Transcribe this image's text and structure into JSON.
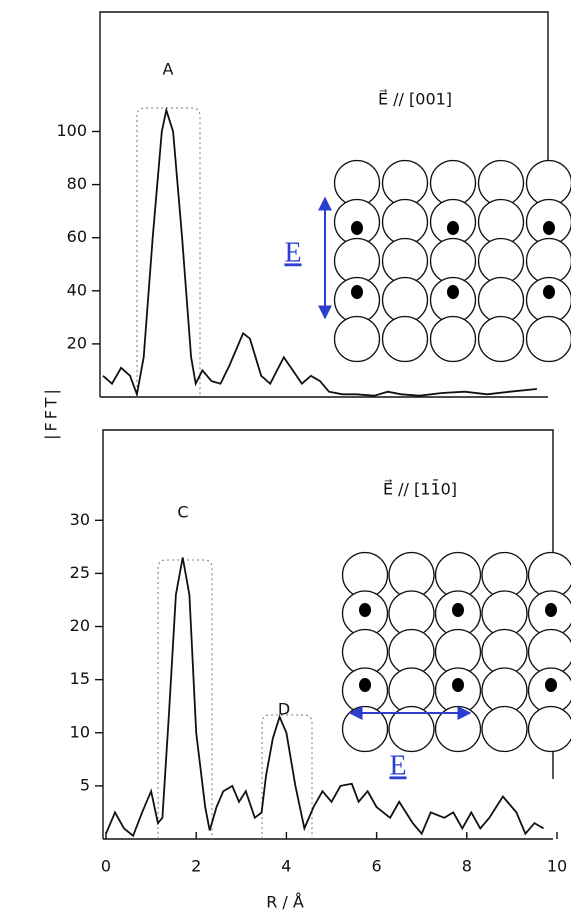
{
  "chart_data": [
    {
      "type": "line",
      "ylabel": "|FFT|",
      "annotations": [
        "A",
        "E⃗ // [001]",
        "E"
      ],
      "xlim": [
        0,
        10
      ],
      "ylim": [
        0,
        145
      ],
      "yticks": [
        20,
        40,
        60,
        80,
        100
      ],
      "color": "#111",
      "x": [
        0,
        0.2,
        0.4,
        0.6,
        0.75,
        0.9,
        1.1,
        1.3,
        1.4,
        1.55,
        1.75,
        1.95,
        2.05,
        2.2,
        2.4,
        2.6,
        2.8,
        3.1,
        3.25,
        3.5,
        3.7,
        4.0,
        4.2,
        4.4,
        4.6,
        4.8,
        5.0,
        5.3,
        5.6,
        6.0,
        6.3,
        6.6,
        7.0,
        7.5,
        8.0,
        8.5,
        9.0,
        9.6
      ],
      "values": [
        8,
        5,
        11,
        8,
        1,
        15,
        60,
        100,
        108,
        100,
        60,
        15,
        5,
        10,
        6,
        5,
        12,
        24,
        22,
        8,
        5,
        15,
        10,
        5,
        8,
        6,
        2,
        1,
        1,
        0.5,
        2,
        1,
        0.5,
        1.5,
        2,
        1,
        2,
        3
      ]
    },
    {
      "type": "line",
      "xlabel": "R / Å",
      "annotations": [
        "C",
        "D",
        "E⃗ // [11̄0]",
        "E"
      ],
      "xlim": [
        0,
        10
      ],
      "xticks": [
        0,
        2,
        4,
        6,
        8,
        10
      ],
      "ylim": [
        0,
        38.5
      ],
      "yticks": [
        5,
        10,
        15,
        20,
        25,
        30
      ],
      "color": "#111",
      "x": [
        0,
        0.2,
        0.4,
        0.6,
        0.8,
        1.0,
        1.15,
        1.25,
        1.4,
        1.55,
        1.7,
        1.85,
        2.0,
        2.2,
        2.3,
        2.45,
        2.6,
        2.8,
        2.95,
        3.1,
        3.3,
        3.45,
        3.55,
        3.7,
        3.85,
        4.0,
        4.2,
        4.4,
        4.6,
        4.8,
        5.0,
        5.2,
        5.45,
        5.6,
        5.8,
        6.0,
        6.3,
        6.5,
        6.8,
        7.0,
        7.2,
        7.5,
        7.7,
        7.9,
        8.1,
        8.3,
        8.5,
        8.8,
        9.1,
        9.3,
        9.5,
        9.7
      ],
      "values": [
        0.5,
        2.5,
        1,
        0.3,
        2.5,
        4.5,
        1.5,
        2,
        12,
        23,
        26.5,
        23,
        10,
        3,
        0.8,
        3,
        4.5,
        5,
        3.5,
        4.5,
        2,
        2.5,
        6,
        9.5,
        11.5,
        10,
        5,
        1,
        3,
        4.5,
        3.5,
        5,
        5.2,
        3.5,
        4.5,
        3,
        2,
        3.5,
        1.5,
        0.5,
        2.5,
        2,
        2.5,
        1,
        2.5,
        1,
        2,
        4,
        2.5,
        0.5,
        1.5,
        1
      ]
    }
  ]
}
